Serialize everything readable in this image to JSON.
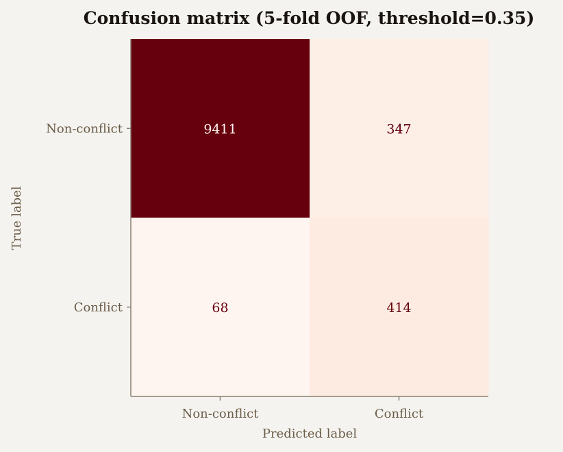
{
  "chart_data": {
    "type": "heatmap",
    "title": "Confusion matrix (5-fold OOF, threshold=0.35)",
    "xlabel": "Predicted label",
    "ylabel": "True label",
    "row_labels": [
      "Non-conflict",
      "Conflict"
    ],
    "col_labels": [
      "Non-conflict",
      "Conflict"
    ],
    "values": [
      [
        9411,
        347
      ],
      [
        68,
        414
      ]
    ],
    "colormap": "Reds",
    "grid": false,
    "colorbar": false
  },
  "colors": {
    "background": "#f4f3ef",
    "axis": "#8a8073",
    "tick_text": "#6b5c48",
    "title_text": "#1a1410",
    "cmap_low": "#fdf4ef",
    "cmap_high": "#67000d",
    "text_on_dark": "#fdf4ef",
    "text_on_light": "#67000d"
  }
}
